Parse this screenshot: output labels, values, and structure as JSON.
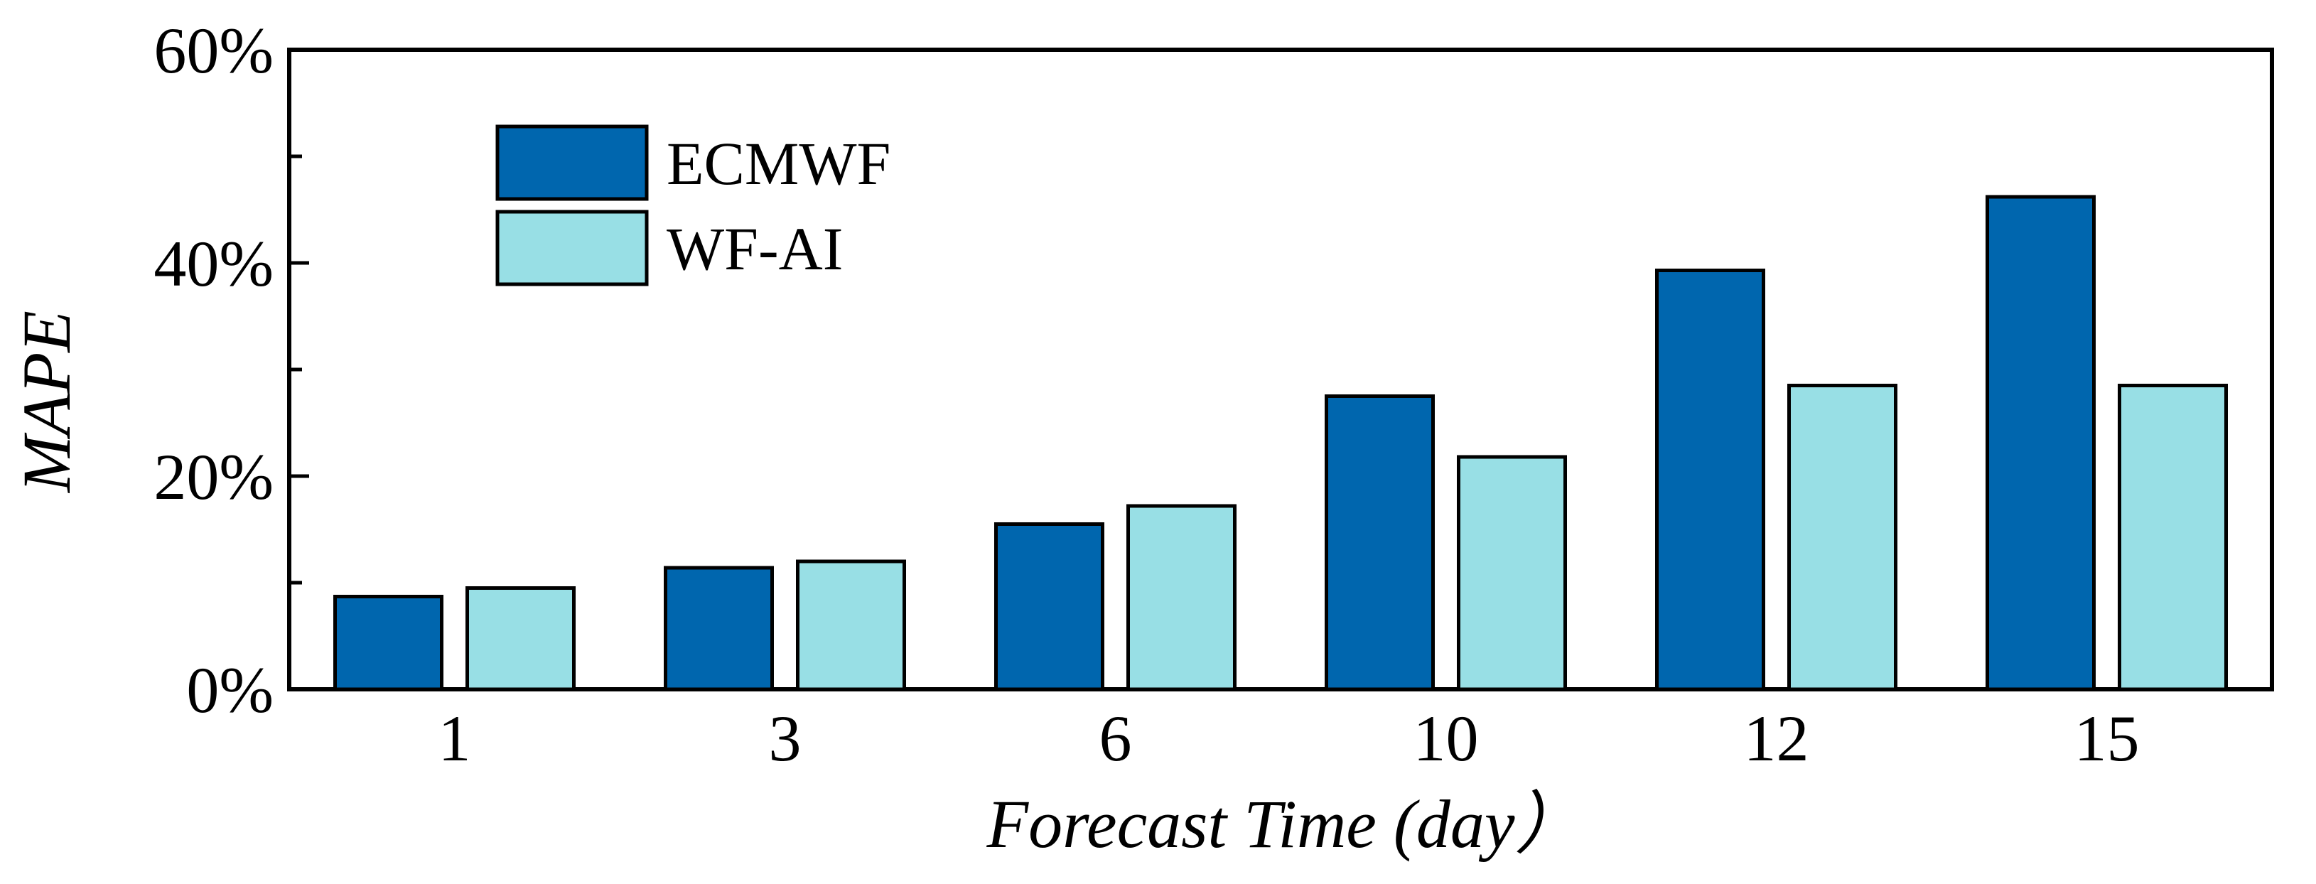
{
  "chart_data": {
    "type": "bar",
    "categories": [
      "1",
      "3",
      "6",
      "10",
      "12",
      "15"
    ],
    "series": [
      {
        "name": "ECMWF",
        "color": "#0066AE",
        "values": [
          8.7,
          11.4,
          15.5,
          27.5,
          39.3,
          46.2
        ]
      },
      {
        "name": "WF-AI",
        "color": "#98DFE5",
        "values": [
          9.5,
          12.0,
          17.2,
          21.8,
          28.5,
          28.5
        ]
      }
    ],
    "title": "",
    "xlabel": "Forecast Time (day）",
    "ylabel": "MAPE",
    "ylim": [
      0,
      60
    ],
    "yticks": [
      {
        "value": 0,
        "label": "0%"
      },
      {
        "value": 20,
        "label": "20%"
      },
      {
        "value": 40,
        "label": "40%"
      },
      {
        "value": 60,
        "label": "60%"
      }
    ],
    "yminor": [
      10,
      30,
      50
    ],
    "grid": false,
    "legend": "top-left"
  }
}
